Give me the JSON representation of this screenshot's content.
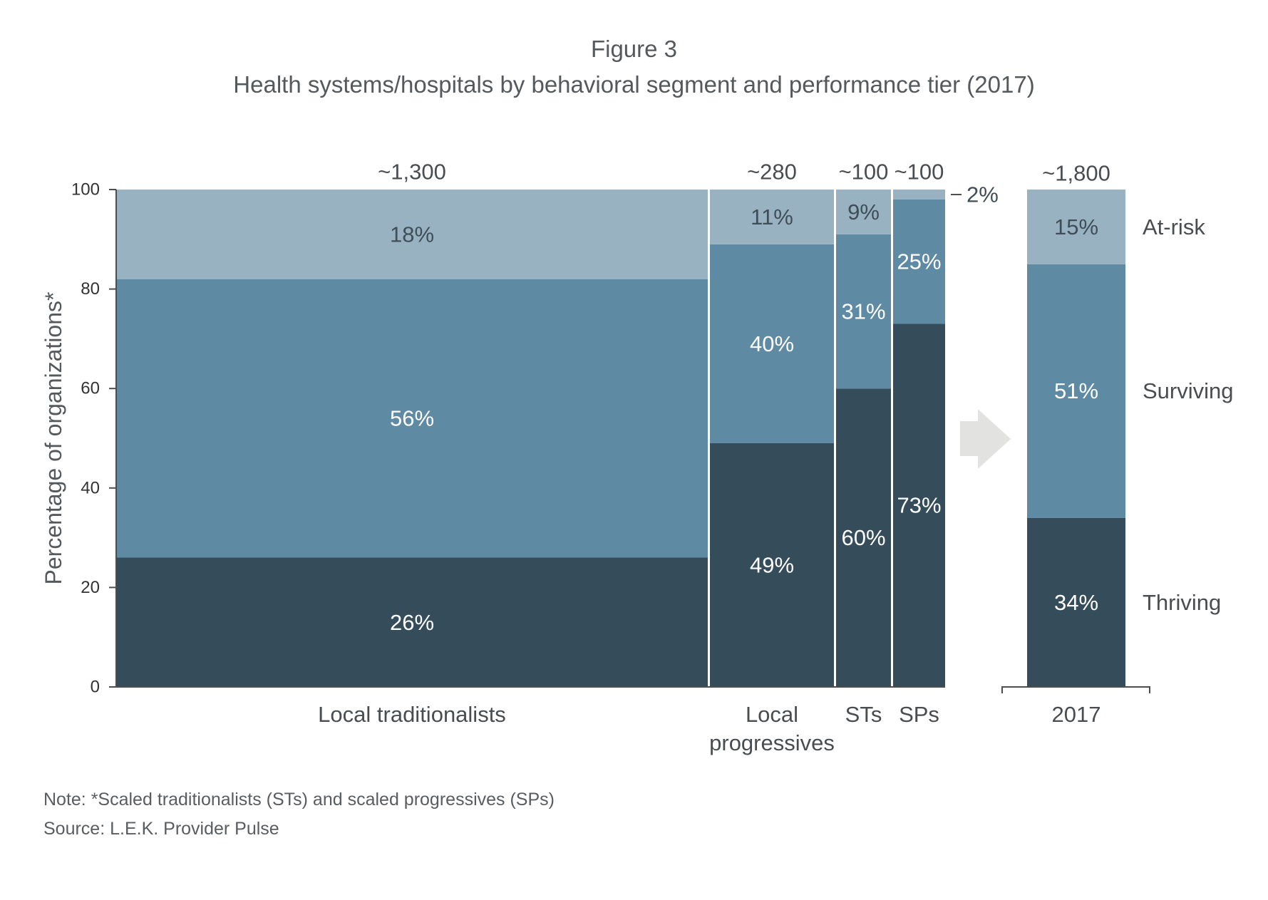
{
  "chart_data": {
    "type": "bar",
    "stacked": true,
    "variable_width": true,
    "figure_label": "Figure 3",
    "title": "Health systems/hospitals by behavioral segment and performance tier (2017)",
    "xlabel": "",
    "ylabel": "Percentage of organizations*",
    "ylim": [
      0,
      100
    ],
    "yticks": [
      0,
      20,
      40,
      60,
      80,
      100
    ],
    "grid": false,
    "legend_placement": "right",
    "categories": [
      "Local traditionalists",
      "Local progressives",
      "STs",
      "SPs"
    ],
    "category_sizes": [
      "~1,300",
      "~280",
      "~100",
      "~100"
    ],
    "series": [
      {
        "name": "Thriving",
        "color": "#354d5a",
        "label_color": "#ffffff",
        "values": [
          26,
          49,
          60,
          73
        ],
        "labels": [
          "26%",
          "49%",
          "60%",
          "73%"
        ]
      },
      {
        "name": "Surviving",
        "color": "#5e8aa3",
        "label_color": "#ffffff",
        "values": [
          56,
          40,
          31,
          25
        ],
        "labels": [
          "56%",
          "40%",
          "31%",
          "25%"
        ]
      },
      {
        "name": "At-risk",
        "color": "#98b2c2",
        "label_color": "#3f4e58",
        "values": [
          18,
          11,
          9,
          2
        ],
        "labels": [
          "18%",
          "11%",
          "9%",
          "2%"
        ]
      }
    ],
    "total": {
      "category": "2017",
      "size": "~1,800",
      "values": [
        34,
        51,
        15
      ],
      "labels": [
        "34%",
        "51%",
        "15%"
      ]
    }
  },
  "notes": {
    "note": "Note: *Scaled traditionalists (STs) and scaled progressives (SPs)",
    "source": "Source: L.E.K. Provider Pulse"
  }
}
